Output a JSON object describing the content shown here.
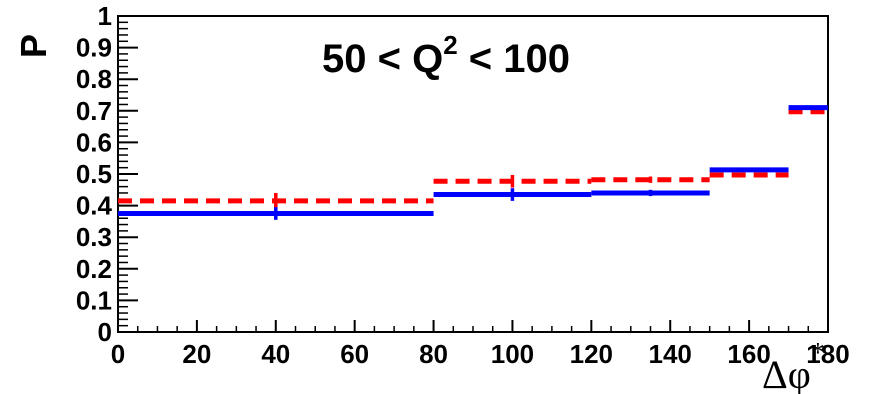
{
  "chart_data": {
    "type": "step",
    "title_parts": {
      "left": "50 < Q",
      "sup": "2",
      "right": " < 100"
    },
    "xlabel": "Δφ",
    "xlabel_sup": "*",
    "ylabel": "P",
    "xlim": [
      0,
      180
    ],
    "ylim": [
      0,
      1
    ],
    "x_ticks": [
      "0",
      "20",
      "40",
      "60",
      "80",
      "100",
      "120",
      "140",
      "160",
      "180"
    ],
    "y_ticks": [
      "0",
      "0.1",
      "0.2",
      "0.3",
      "0.4",
      "0.5",
      "0.6",
      "0.7",
      "0.8",
      "0.9",
      "1"
    ],
    "grid": false,
    "series": [
      {
        "style": "solid",
        "color": "#0000ff",
        "bins": [
          {
            "x0": 0,
            "x1": 80,
            "y": 0.375,
            "center": 40,
            "err": 0.02
          },
          {
            "x0": 80,
            "x1": 120,
            "y": 0.435,
            "center": 100,
            "err": 0.02
          },
          {
            "x0": 120,
            "x1": 150,
            "y": 0.44,
            "center": 135,
            "err": 0.01
          },
          {
            "x0": 150,
            "x1": 170,
            "y": 0.513
          },
          {
            "x0": 170,
            "x1": 180,
            "y": 0.71
          }
        ]
      },
      {
        "style": "dashed",
        "color": "#ff0000",
        "bins": [
          {
            "x0": 0,
            "x1": 80,
            "y": 0.415,
            "center": 40,
            "err": 0.025
          },
          {
            "x0": 80,
            "x1": 120,
            "y": 0.477,
            "center": 100,
            "err": 0.02
          },
          {
            "x0": 120,
            "x1": 150,
            "y": 0.482,
            "center": 135,
            "err": 0.01
          },
          {
            "x0": 150,
            "x1": 170,
            "y": 0.497
          },
          {
            "x0": 170,
            "x1": 180,
            "y": 0.697
          }
        ]
      }
    ]
  }
}
